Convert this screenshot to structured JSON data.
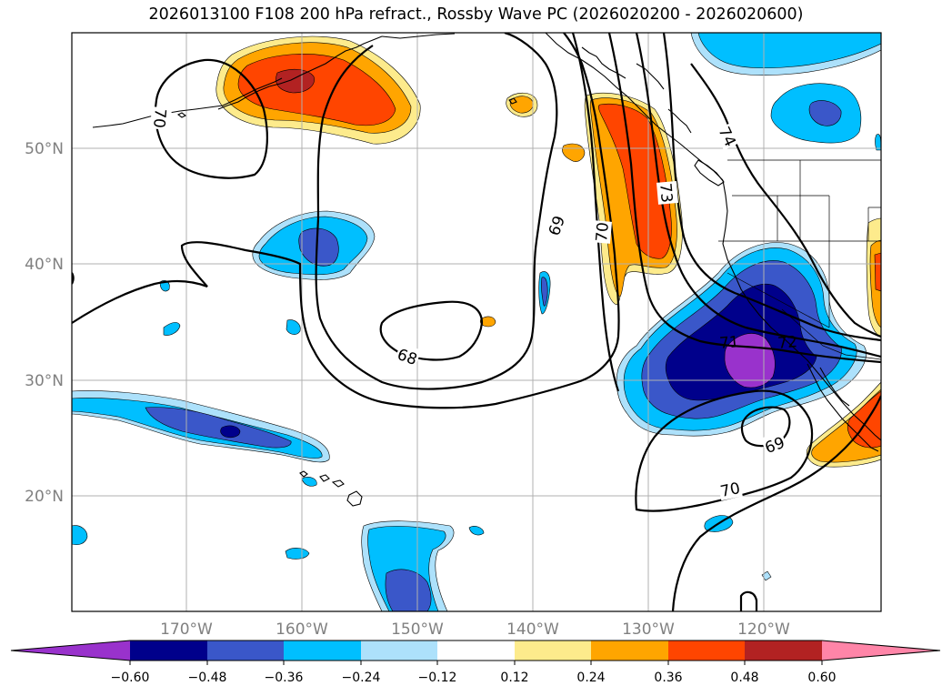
{
  "title": "2026013100 F108 200 hPa refract., Rossby Wave PC (2026020200 - 2026020600)",
  "colors": {
    "neg_060": "#9932cc",
    "neg_048": "#00008b",
    "neg_036": "#3a57c9",
    "neg_024": "#00bfff",
    "neg_012": "#ade1fb",
    "neutral": "#ffffff",
    "pos_012": "#fdeb8c",
    "pos_024": "#ffa500",
    "pos_036": "#ff4500",
    "pos_048": "#b22222",
    "pos_060": "#ff85a8"
  },
  "map": {
    "lat_labels": [
      "50°N",
      "40°N",
      "30°N",
      "20°N"
    ],
    "lon_labels": [
      "170°W",
      "160°W",
      "150°W",
      "140°W",
      "130°W",
      "120°W"
    ],
    "contour_labels": [
      "70",
      "69",
      "70",
      "73",
      "74",
      "68",
      "71",
      "72",
      "69",
      "70"
    ]
  },
  "colorbar": {
    "ticks": [
      "−0.60",
      "−0.48",
      "−0.36",
      "−0.24",
      "−0.12",
      "0.12",
      "0.24",
      "0.36",
      "0.48",
      "0.60"
    ]
  }
}
